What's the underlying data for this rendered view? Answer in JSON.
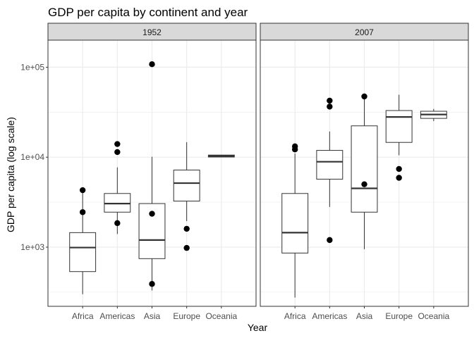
{
  "chart_data": {
    "type": "boxplot",
    "title": "GDP per capita by continent and year",
    "xlabel": "Year",
    "ylabel": "GDP per capita (log scale)",
    "y_scale": "log10",
    "ylim": [
      220,
      200000
    ],
    "y_ticks": [
      {
        "value": 1000,
        "label": "1e+03"
      },
      {
        "value": 10000,
        "label": "1e+04"
      },
      {
        "value": 100000,
        "label": "1e+05"
      }
    ],
    "categories": [
      "Africa",
      "Americas",
      "Asia",
      "Europe",
      "Oceania"
    ],
    "panels": [
      {
        "label": "1952",
        "boxes": [
          {
            "category": "Africa",
            "min": 300,
            "q1": 535,
            "median": 990,
            "q3": 1450,
            "max": 4300,
            "outliers": [
              4300,
              2450
            ]
          },
          {
            "category": "Americas",
            "min": 1400,
            "q1": 2450,
            "median": 3050,
            "q3": 3950,
            "max": 7700,
            "outliers": [
              14000,
              11400,
              1850
            ]
          },
          {
            "category": "Asia",
            "min": 330,
            "q1": 745,
            "median": 1200,
            "q3": 3050,
            "max": 10100,
            "outliers": [
              108000,
              2350,
              390
            ]
          },
          {
            "category": "Europe",
            "min": 1950,
            "q1": 3250,
            "median": 5150,
            "q3": 7200,
            "max": 14700,
            "outliers": [
              1600,
              980
            ]
          },
          {
            "category": "Oceania",
            "min": 10040,
            "q1": 10040,
            "median": 10300,
            "q3": 10560,
            "max": 10560,
            "outliers": []
          }
        ]
      },
      {
        "label": "2007",
        "boxes": [
          {
            "category": "Africa",
            "min": 275,
            "q1": 860,
            "median": 1450,
            "q3": 3950,
            "max": 11000,
            "outliers": [
              13200,
              12200
            ]
          },
          {
            "category": "Americas",
            "min": 2800,
            "q1": 5700,
            "median": 8900,
            "q3": 11900,
            "max": 19300,
            "outliers": [
              42500,
              36500,
              1200
            ]
          },
          {
            "category": "Asia",
            "min": 950,
            "q1": 2450,
            "median": 4500,
            "q3": 22300,
            "max": 48000,
            "outliers": [
              47300,
              5000
            ]
          },
          {
            "category": "Europe",
            "min": 10500,
            "q1": 14600,
            "median": 28000,
            "q3": 33000,
            "max": 49500,
            "outliers": [
              7400,
              5900
            ]
          },
          {
            "category": "Oceania",
            "min": 25200,
            "q1": 27000,
            "median": 29800,
            "q3": 32400,
            "max": 34400,
            "outliers": []
          }
        ]
      }
    ],
    "grid": true,
    "legend": "none",
    "colors": {
      "strip_fill": "#d9d9d9",
      "panel_border": "#333333",
      "grid": "#ebebeb",
      "box_line": "#333333",
      "outlier": "#000000"
    }
  }
}
